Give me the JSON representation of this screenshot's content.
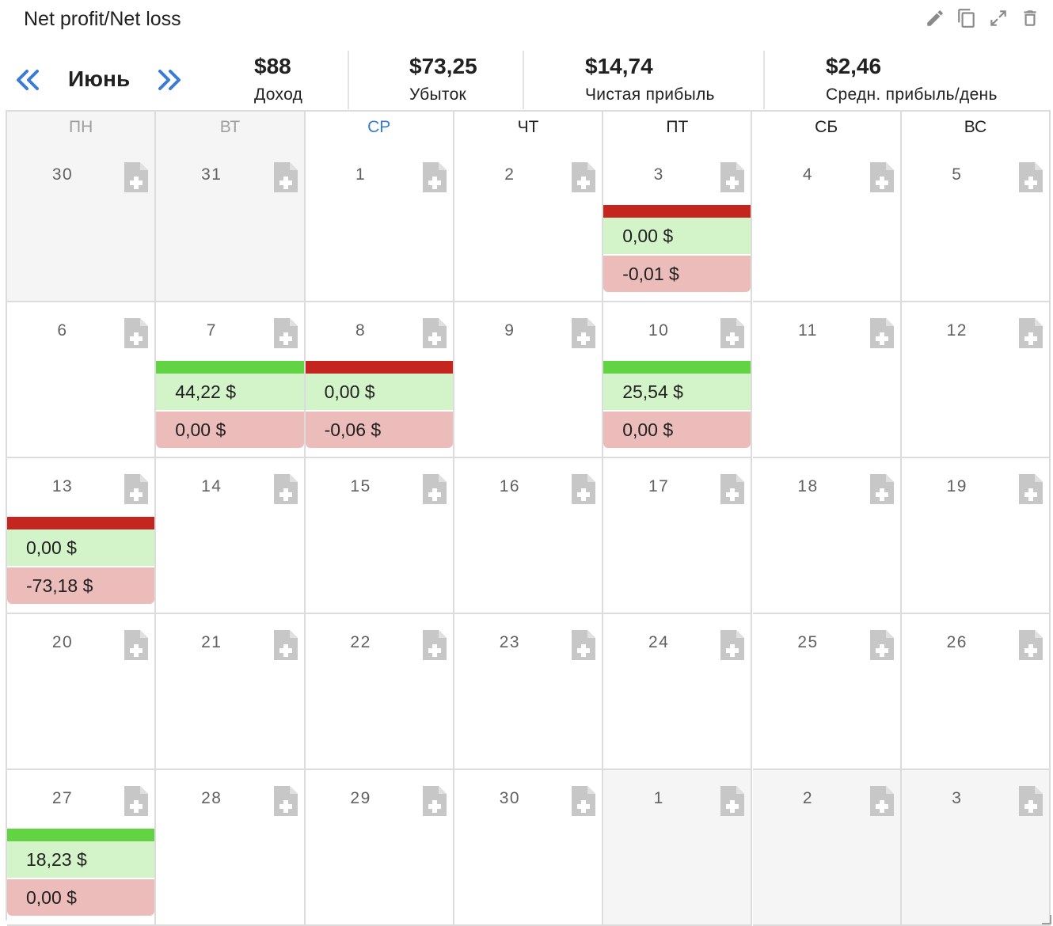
{
  "widget": {
    "title": "Net profit/Net loss",
    "icons": [
      "pencil-icon",
      "copy-icon",
      "expand-icon",
      "trash-icon"
    ]
  },
  "nav": {
    "prev_icon": "double-chevron-left-icon",
    "month": "Июнь",
    "next_icon": "double-chevron-right-icon"
  },
  "stats": [
    {
      "value": "$88",
      "label": "Доход"
    },
    {
      "value": "$73,25",
      "label": "Убыток"
    },
    {
      "value": "$14,74",
      "label": "Чистая прибыль"
    },
    {
      "value": "$2,46",
      "label": "Средн. прибыль/день"
    }
  ],
  "colors": {
    "accent": "#3a7bd5",
    "profit_strip": "#62d443",
    "loss_strip": "#c4261f",
    "income_bg": "#d3f3c9",
    "loss_bg": "#ebbcba",
    "other_month_bg": "#f5f5f5"
  },
  "weekdays": [
    {
      "label": "ПН",
      "style": "muted"
    },
    {
      "label": "ВТ",
      "style": "muted"
    },
    {
      "label": "СР",
      "style": "accent"
    },
    {
      "label": "ЧТ",
      "style": "normal"
    },
    {
      "label": "ПТ",
      "style": "normal"
    },
    {
      "label": "СБ",
      "style": "normal"
    },
    {
      "label": "ВС",
      "style": "normal"
    }
  ],
  "weeks": [
    [
      {
        "day": "30",
        "other": true
      },
      {
        "day": "31",
        "other": true
      },
      {
        "day": "1"
      },
      {
        "day": "2"
      },
      {
        "day": "3",
        "status": "loss",
        "income": "0,00 $",
        "loss": "-0,01 $"
      },
      {
        "day": "4"
      },
      {
        "day": "5"
      }
    ],
    [
      {
        "day": "6"
      },
      {
        "day": "7",
        "status": "profit",
        "income": "44,22 $",
        "loss": "0,00 $"
      },
      {
        "day": "8",
        "status": "loss",
        "income": "0,00 $",
        "loss": "-0,06 $"
      },
      {
        "day": "9"
      },
      {
        "day": "10",
        "status": "profit",
        "income": "25,54 $",
        "loss": "0,00 $"
      },
      {
        "day": "11"
      },
      {
        "day": "12"
      }
    ],
    [
      {
        "day": "13",
        "status": "loss",
        "income": "0,00 $",
        "loss": "-73,18 $"
      },
      {
        "day": "14"
      },
      {
        "day": "15"
      },
      {
        "day": "16"
      },
      {
        "day": "17"
      },
      {
        "day": "18"
      },
      {
        "day": "19"
      }
    ],
    [
      {
        "day": "20"
      },
      {
        "day": "21"
      },
      {
        "day": "22"
      },
      {
        "day": "23"
      },
      {
        "day": "24"
      },
      {
        "day": "25"
      },
      {
        "day": "26"
      }
    ],
    [
      {
        "day": "27",
        "status": "profit",
        "income": "18,23 $",
        "loss": "0,00 $"
      },
      {
        "day": "28"
      },
      {
        "day": "29"
      },
      {
        "day": "30"
      },
      {
        "day": "1",
        "other": true
      },
      {
        "day": "2",
        "other": true
      },
      {
        "day": "3",
        "other": true
      }
    ]
  ]
}
